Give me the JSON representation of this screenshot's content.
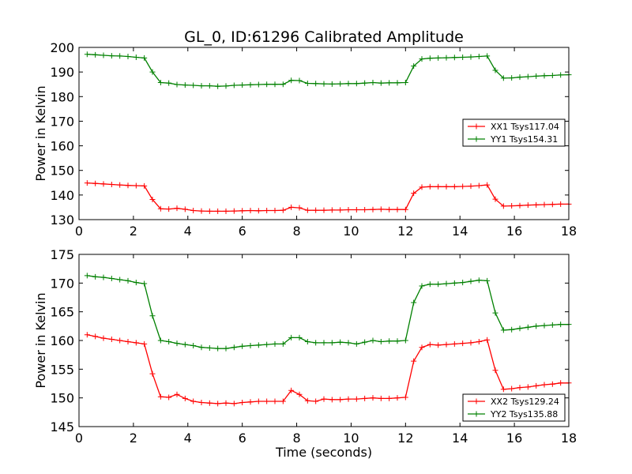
{
  "title": "GL_0, ID:61296 Calibrated Amplitude",
  "chart_data": [
    {
      "type": "line",
      "xlabel": "",
      "ylabel": "Power in Kelvin",
      "xlim": [
        0,
        18
      ],
      "ylim": [
        130,
        200
      ],
      "xticks": [
        0,
        2,
        4,
        6,
        8,
        10,
        12,
        14,
        16,
        18
      ],
      "yticks": [
        130,
        140,
        150,
        160,
        170,
        180,
        190,
        200
      ],
      "legend_position": "center-right",
      "x": [
        0.3,
        0.6,
        0.9,
        1.2,
        1.5,
        1.8,
        2.1,
        2.4,
        2.7,
        3.0,
        3.3,
        3.6,
        3.9,
        4.2,
        4.5,
        4.8,
        5.1,
        5.4,
        5.7,
        6.0,
        6.3,
        6.6,
        6.9,
        7.2,
        7.5,
        7.8,
        8.1,
        8.4,
        8.7,
        9.0,
        9.3,
        9.6,
        9.9,
        10.2,
        10.5,
        10.8,
        11.1,
        11.4,
        11.7,
        12.0,
        12.3,
        12.6,
        12.9,
        13.2,
        13.5,
        13.8,
        14.1,
        14.4,
        14.7,
        15.0,
        15.3,
        15.6,
        15.9,
        16.2,
        16.5,
        16.8,
        17.1,
        17.4,
        17.7,
        18.0
      ],
      "series": [
        {
          "name": "XX1 Tsys117.04",
          "color": "#ff0000",
          "values": [
            144.9,
            144.7,
            144.5,
            144.3,
            144.1,
            143.9,
            143.8,
            143.7,
            138.2,
            134.4,
            134.3,
            134.6,
            134.2,
            133.7,
            133.5,
            133.4,
            133.4,
            133.4,
            133.5,
            133.6,
            133.7,
            133.6,
            133.7,
            133.7,
            133.8,
            135.0,
            134.8,
            133.8,
            133.8,
            133.8,
            133.9,
            133.9,
            134.0,
            134.0,
            134.0,
            134.1,
            134.2,
            134.1,
            134.1,
            134.1,
            140.7,
            143.2,
            143.4,
            143.4,
            143.4,
            143.4,
            143.5,
            143.6,
            143.8,
            144.1,
            138.3,
            135.5,
            135.6,
            135.7,
            135.9,
            136.0,
            136.1,
            136.2,
            136.3,
            136.3
          ]
        },
        {
          "name": "YY1 Tsys154.31",
          "color": "#008000",
          "values": [
            197.2,
            197.0,
            196.8,
            196.6,
            196.5,
            196.3,
            196.0,
            195.7,
            190.0,
            185.7,
            185.5,
            184.9,
            184.7,
            184.6,
            184.4,
            184.4,
            184.2,
            184.3,
            184.6,
            184.7,
            184.8,
            184.9,
            185.0,
            185.0,
            185.0,
            186.6,
            186.5,
            185.4,
            185.3,
            185.2,
            185.1,
            185.2,
            185.3,
            185.3,
            185.5,
            185.7,
            185.5,
            185.6,
            185.6,
            185.7,
            192.4,
            195.3,
            195.6,
            195.7,
            195.8,
            195.9,
            196.0,
            196.1,
            196.3,
            196.5,
            190.7,
            187.5,
            187.6,
            187.9,
            188.1,
            188.3,
            188.5,
            188.6,
            188.8,
            188.9
          ]
        }
      ]
    },
    {
      "type": "line",
      "xlabel": "Time (seconds)",
      "ylabel": "Power in Kelvin",
      "xlim": [
        0,
        18
      ],
      "ylim": [
        145,
        175
      ],
      "xticks": [
        0,
        2,
        4,
        6,
        8,
        10,
        12,
        14,
        16,
        18
      ],
      "yticks": [
        145,
        150,
        155,
        160,
        165,
        170,
        175
      ],
      "legend_position": "lower-right",
      "x": [
        0.3,
        0.6,
        0.9,
        1.2,
        1.5,
        1.8,
        2.1,
        2.4,
        2.7,
        3.0,
        3.3,
        3.6,
        3.9,
        4.2,
        4.5,
        4.8,
        5.1,
        5.4,
        5.7,
        6.0,
        6.3,
        6.6,
        6.9,
        7.2,
        7.5,
        7.8,
        8.1,
        8.4,
        8.7,
        9.0,
        9.3,
        9.6,
        9.9,
        10.2,
        10.5,
        10.8,
        11.1,
        11.4,
        11.7,
        12.0,
        12.3,
        12.6,
        12.9,
        13.2,
        13.5,
        13.8,
        14.1,
        14.4,
        14.7,
        15.0,
        15.3,
        15.6,
        15.9,
        16.2,
        16.5,
        16.8,
        17.1,
        17.4,
        17.7,
        18.0
      ],
      "series": [
        {
          "name": "XX2 Tsys129.24",
          "color": "#ff0000",
          "values": [
            161.0,
            160.7,
            160.4,
            160.2,
            160.0,
            159.8,
            159.6,
            159.4,
            154.2,
            150.2,
            150.1,
            150.6,
            149.9,
            149.4,
            149.2,
            149.1,
            149.0,
            149.1,
            149.0,
            149.2,
            149.3,
            149.4,
            149.4,
            149.4,
            149.4,
            151.3,
            150.6,
            149.5,
            149.4,
            149.8,
            149.7,
            149.7,
            149.8,
            149.8,
            149.9,
            150.0,
            149.9,
            149.9,
            150.0,
            150.1,
            156.4,
            158.8,
            159.3,
            159.2,
            159.3,
            159.4,
            159.5,
            159.6,
            159.8,
            160.1,
            154.8,
            151.5,
            151.6,
            151.8,
            151.9,
            152.1,
            152.3,
            152.4,
            152.6,
            152.6
          ]
        },
        {
          "name": "YY2 Tsys135.88",
          "color": "#008000",
          "values": [
            171.3,
            171.1,
            171.0,
            170.8,
            170.6,
            170.4,
            170.1,
            169.9,
            164.3,
            160.0,
            159.8,
            159.5,
            159.3,
            159.1,
            158.8,
            158.7,
            158.6,
            158.6,
            158.8,
            159.0,
            159.1,
            159.2,
            159.3,
            159.4,
            159.4,
            160.5,
            160.5,
            159.8,
            159.6,
            159.6,
            159.6,
            159.7,
            159.6,
            159.4,
            159.7,
            160.0,
            159.8,
            159.9,
            159.9,
            160.0,
            166.6,
            169.5,
            169.8,
            169.8,
            169.9,
            170.0,
            170.1,
            170.3,
            170.5,
            170.4,
            164.8,
            161.8,
            161.9,
            162.1,
            162.3,
            162.5,
            162.6,
            162.7,
            162.8,
            162.8
          ]
        }
      ]
    }
  ]
}
